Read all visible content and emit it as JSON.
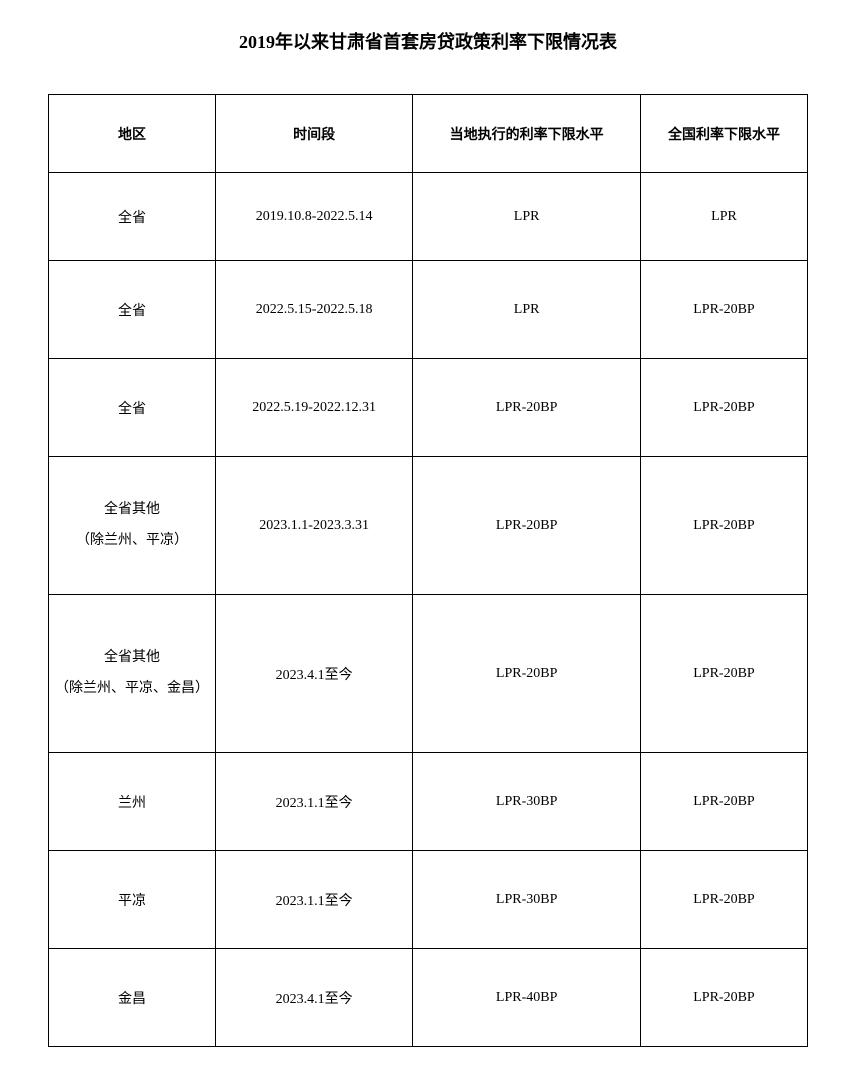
{
  "title": "2019年以来甘肃省首套房贷政策利率下限情况表",
  "table": {
    "columns": [
      "地区",
      "时间段",
      "当地执行的利率下限水平",
      "全国利率下限水平"
    ],
    "rows": [
      {
        "region": "全省",
        "period": "2019.10.8-2022.5.14",
        "local_rate": "LPR",
        "national_rate": "LPR",
        "height_class": "row-h1",
        "multiline": false
      },
      {
        "region": "全省",
        "period": "2022.5.15-2022.5.18",
        "local_rate": "LPR",
        "national_rate": "LPR-20BP",
        "height_class": "row-h2",
        "multiline": false
      },
      {
        "region": "全省",
        "period": "2022.5.19-2022.12.31",
        "local_rate": "LPR-20BP",
        "national_rate": "LPR-20BP",
        "height_class": "row-h2",
        "multiline": false
      },
      {
        "region_line1": "全省其他",
        "region_line2": "（除兰州、平凉）",
        "period": "2023.1.1-2023.3.31",
        "local_rate": "LPR-20BP",
        "national_rate": "LPR-20BP",
        "height_class": "row-h3",
        "multiline": true
      },
      {
        "region_line1": "全省其他",
        "region_line2": "（除兰州、平凉、金昌）",
        "period": "2023.4.1至今",
        "local_rate": "LPR-20BP",
        "national_rate": "LPR-20BP",
        "height_class": "row-h4",
        "multiline": true
      },
      {
        "region": "兰州",
        "period": "2023.1.1至今",
        "local_rate": "LPR-30BP",
        "national_rate": "LPR-20BP",
        "height_class": "row-h2",
        "multiline": false
      },
      {
        "region": "平凉",
        "period": "2023.1.1至今",
        "local_rate": "LPR-30BP",
        "national_rate": "LPR-20BP",
        "height_class": "row-h2",
        "multiline": false
      },
      {
        "region": "金昌",
        "period": "2023.4.1至今",
        "local_rate": "LPR-40BP",
        "national_rate": "LPR-20BP",
        "height_class": "row-h2",
        "multiline": false
      }
    ]
  },
  "styling": {
    "background_color": "#ffffff",
    "border_color": "#000000",
    "text_color": "#000000",
    "title_fontsize": 18,
    "cell_fontsize": 14,
    "col_widths_pct": [
      22,
      26,
      30,
      22
    ]
  }
}
